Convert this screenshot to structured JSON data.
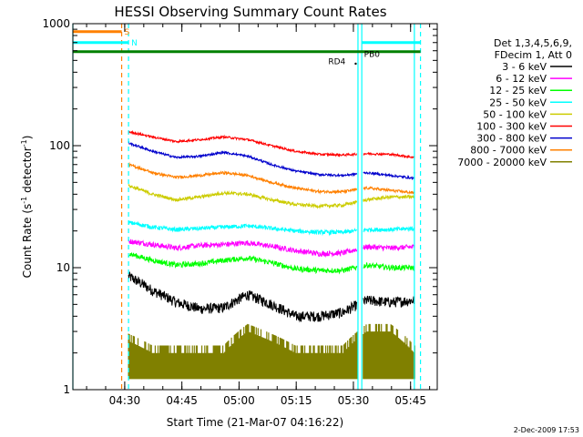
{
  "chart_data": {
    "type": "line",
    "title": "HESSI Observing Summary Count Rates",
    "xlabel": "Start Time (21-Mar-07 04:16:22)",
    "ylabel_main": "Count Rate (s",
    "ylabel_sup1": "-1",
    "ylabel_mid": " detector",
    "ylabel_sup2": "-1",
    "ylabel_end": ")",
    "y_scale": "log",
    "ylim": [
      1,
      1000
    ],
    "y_ticks": [
      1,
      10,
      100,
      1000
    ],
    "y_tick_labels": [
      "1",
      "10",
      "100",
      "1000"
    ],
    "x_range_minutes": [
      0,
      95.6
    ],
    "x_ticks": [
      {
        "minute": 13.6,
        "label": "04:30"
      },
      {
        "minute": 28.6,
        "label": "04:45"
      },
      {
        "minute": 43.6,
        "label": "05:00"
      },
      {
        "minute": 58.6,
        "label": "05:15"
      },
      {
        "minute": 73.6,
        "label": "05:30"
      },
      {
        "minute": 88.6,
        "label": "05:45"
      }
    ],
    "legend": {
      "header1": "Det 1,3,4,5,6,9,",
      "header2": "FDecim 1, Att 0",
      "placement": "right"
    },
    "series": [
      {
        "name": "3 - 6 keV",
        "color": "#000000",
        "level": [
          8.5,
          6.5,
          5.2,
          4.6,
          4.7,
          6.0,
          5.0,
          4.0,
          4.0,
          4.3,
          5.4,
          5.2,
          5.4
        ],
        "noise": 0.1
      },
      {
        "name": "6 - 12 keV",
        "color": "#ff00ff",
        "level": [
          16.5,
          15.5,
          14.5,
          15.2,
          15.5,
          16.0,
          15.0,
          13.8,
          13.0,
          13.2,
          14.8,
          14.5,
          14.8
        ],
        "noise": 0.05
      },
      {
        "name": "12 - 25 keV",
        "color": "#00ff00",
        "level": [
          13.0,
          11.5,
          10.5,
          10.8,
          11.5,
          12.0,
          11.0,
          9.8,
          9.5,
          9.5,
          10.5,
          10.0,
          10.0
        ],
        "noise": 0.05
      },
      {
        "name": "25 - 50 keV",
        "color": "#00ffff",
        "level": [
          23.5,
          21.5,
          20.5,
          21.0,
          21.5,
          22.0,
          21.0,
          20.0,
          19.5,
          19.5,
          20.5,
          20.5,
          21.0
        ],
        "noise": 0.04
      },
      {
        "name": "50 - 100 keV",
        "color": "#cccc00",
        "level": [
          47.0,
          40.0,
          36.0,
          38.0,
          41.0,
          40.0,
          36.0,
          33.0,
          32.0,
          32.5,
          36.0,
          38.0,
          38.0
        ],
        "noise": 0.03
      },
      {
        "name": "100 - 300 keV",
        "color": "#ff0000",
        "level": [
          130.0,
          118.0,
          108.0,
          112.0,
          118.0,
          112.0,
          100.0,
          90.0,
          85.0,
          84.0,
          86.0,
          85.0,
          80.0
        ],
        "noise": 0.02
      },
      {
        "name": "300 - 800 keV",
        "color": "#0000cc",
        "level": [
          105.0,
          90.0,
          80.0,
          82.0,
          88.0,
          82.0,
          70.0,
          62.0,
          58.0,
          57.0,
          60.0,
          57.0,
          54.0
        ],
        "noise": 0.02
      },
      {
        "name": "800 - 7000 keV",
        "color": "#ff8000",
        "level": [
          70.0,
          60.0,
          55.0,
          57.0,
          60.0,
          57.0,
          50.0,
          45.0,
          42.0,
          42.0,
          45.0,
          43.0,
          41.0
        ],
        "noise": 0.025
      },
      {
        "name": "7000 - 20000 keV",
        "color": "#808000",
        "level": [
          2.5,
          2.0,
          2.0,
          2.0,
          2.0,
          3.0,
          2.5,
          2.0,
          2.0,
          2.0,
          3.0,
          3.0,
          2.0
        ],
        "noise": 0.0
      }
    ],
    "segments": [
      [
        14.6,
        74.5
      ],
      [
        76.2,
        89.6
      ]
    ],
    "vertical_lines": [
      {
        "minute": 0,
        "color": "#00ffff",
        "dash": false
      },
      {
        "minute": 12.8,
        "color": "#ff8000",
        "dash": true
      },
      {
        "minute": 14.6,
        "color": "#00ffff",
        "dash": true
      },
      {
        "minute": 74.8,
        "color": "#00ffff",
        "dash": false
      },
      {
        "minute": 75.8,
        "color": "#00ffff",
        "dash": false
      },
      {
        "minute": 89.6,
        "color": "#00ffff",
        "dash": false
      },
      {
        "minute": 91.2,
        "color": "#00ffff",
        "dash": true
      }
    ],
    "flags": [
      {
        "label": "S",
        "color": "#ff8000",
        "x0": 0,
        "x1": 12.8,
        "y": 860
      },
      {
        "label": "N",
        "color": "#00ffff",
        "x0": 0,
        "x1": 14.6,
        "y": 700
      },
      {
        "label": "",
        "color": "#00ffff",
        "x0": 75.8,
        "x1": 91.2,
        "y": 700
      },
      {
        "label": "",
        "color": "#008000",
        "x0": 0,
        "x1": 91.2,
        "y": 590
      }
    ],
    "annotations": [
      {
        "label": "PB0",
        "minute": 76.4,
        "value": 560
      },
      {
        "label": "RD4",
        "minute": 67.0,
        "value": 490
      }
    ],
    "timestamp": "2-Dec-2009 17:53"
  }
}
